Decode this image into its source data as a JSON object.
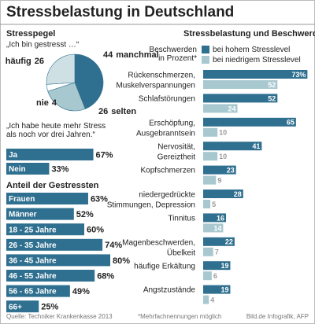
{
  "title": "Stressbelastung in Deutschland",
  "chart_data": [
    {
      "type": "pie",
      "title": "Stresspegel",
      "subtitle": "„Ich bin gestresst …“",
      "categories": [
        "manchmal",
        "selten",
        "nie",
        "häufig"
      ],
      "values": [
        44,
        26,
        4,
        26
      ],
      "colors": [
        "#2f6f8f",
        "#a8c8cf",
        "#ffffff",
        "#cfe0e5"
      ]
    },
    {
      "type": "bar",
      "title": "„Ich habe heute mehr Stress\nals noch vor drei Jahren.“",
      "categories": [
        "Ja",
        "Nein"
      ],
      "values": [
        67,
        33
      ],
      "value_labels": [
        "67%",
        "33%"
      ],
      "color": "#2f6f8f",
      "xlim": [
        0,
        100
      ]
    },
    {
      "type": "bar",
      "title": "Anteil der Gestressten",
      "categories": [
        "Frauen",
        "Männer",
        "18 - 25 Jahre",
        "26 - 35 Jahre",
        "36 - 45 Jahre",
        "46 - 55 Jahre",
        "56 - 65 Jahre",
        "66+"
      ],
      "values": [
        63,
        52,
        60,
        74,
        80,
        68,
        49,
        25
      ],
      "value_labels": [
        "63%",
        "52%",
        "60%",
        "74%",
        "80%",
        "68%",
        "49%",
        "25%"
      ],
      "color": "#2f6f8f",
      "xlim": [
        0,
        100
      ]
    },
    {
      "type": "bar",
      "title": "Stressbelastung und Beschwerden",
      "legend_title": "Beschwerden\nin Prozent*",
      "categories": [
        "Rückenschmerzen,\nMuskelverspannungen",
        "Schlafstörungen",
        "Erschöpfung,\nAusgebranntsein",
        "Nervosität,\nGereiztheit",
        "Kopfschmerzen",
        "niedergedrückte\nStimmungen, Depression",
        "Tinnitus",
        "Magenbeschwerden,\nÜbelkeit",
        "häufige Erkältung",
        "Angstzustände"
      ],
      "series": [
        {
          "name": "bei hohem Stresslevel",
          "color": "#2f6f8f",
          "values": [
            73,
            52,
            65,
            41,
            23,
            28,
            16,
            22,
            19,
            19
          ],
          "value_labels": [
            "73%",
            "52",
            "65",
            "41",
            "23",
            "28",
            "16",
            "22",
            "19",
            "19"
          ]
        },
        {
          "name": "bei niedrigem Stresslevel",
          "color": "#a8c8cf",
          "values": [
            52,
            24,
            10,
            10,
            9,
            5,
            14,
            7,
            6,
            4
          ]
        }
      ],
      "xlim": [
        0,
        75
      ]
    }
  ],
  "footer": {
    "source": "Quelle: Techniker Krankenkasse 2013",
    "note": "*Mehrfachnennungen möglich",
    "credit": "Bild.de Infografik, AFP"
  }
}
